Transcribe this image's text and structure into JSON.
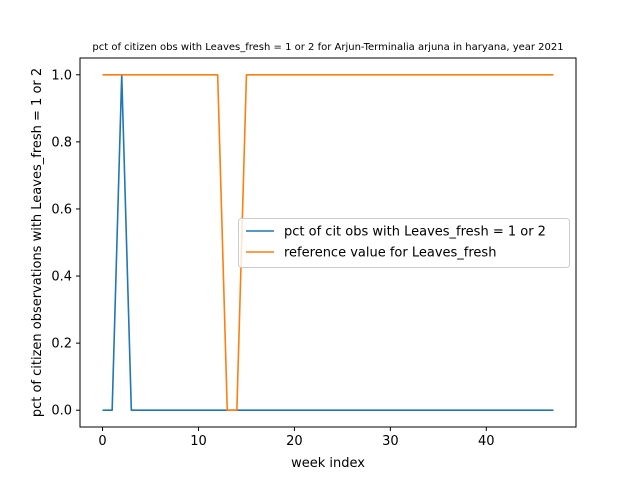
{
  "chart_data": {
    "type": "line",
    "title": "pct of citizen obs with Leaves_fresh = 1 or 2 for Arjun-Terminalia arjuna in haryana, year 2021",
    "xlabel": "week index",
    "ylabel": "pct of citizen observations with Leaves_fresh = 1 or 2",
    "xlim": [
      -2.35,
      49.35
    ],
    "ylim": [
      -0.05,
      1.05
    ],
    "xticks": [
      0,
      10,
      20,
      30,
      40
    ],
    "yticks": [
      0.0,
      0.2,
      0.4,
      0.6,
      0.8,
      1.0
    ],
    "xtick_labels": [
      "0",
      "10",
      "20",
      "30",
      "40"
    ],
    "ytick_labels": [
      "0.0",
      "0.2",
      "0.4",
      "0.6",
      "0.8",
      "1.0"
    ],
    "grid": false,
    "legend_position": "center-right",
    "series": [
      {
        "name": "pct of cit obs with Leaves_fresh = 1 or 2",
        "color": "#1f77b4",
        "x": [
          0,
          1,
          2,
          3,
          4,
          5,
          6,
          7,
          8,
          9,
          10,
          11,
          12,
          13,
          14,
          15,
          16,
          17,
          18,
          19,
          20,
          21,
          22,
          23,
          24,
          25,
          26,
          27,
          28,
          29,
          30,
          31,
          32,
          33,
          34,
          35,
          36,
          37,
          38,
          39,
          40,
          41,
          42,
          43,
          44,
          45,
          46,
          47
        ],
        "y": [
          0,
          0,
          1,
          0,
          0,
          0,
          0,
          0,
          0,
          0,
          0,
          0,
          0,
          0,
          0,
          0,
          0,
          0,
          0,
          0,
          0,
          0,
          0,
          0,
          0,
          0,
          0,
          0,
          0,
          0,
          0,
          0,
          0,
          0,
          0,
          0,
          0,
          0,
          0,
          0,
          0,
          0,
          0,
          0,
          0,
          0,
          0,
          0
        ]
      },
      {
        "name": "reference value for Leaves_fresh",
        "color": "#ff7f0e",
        "x": [
          0,
          1,
          2,
          3,
          4,
          5,
          6,
          7,
          8,
          9,
          10,
          11,
          12,
          13,
          14,
          15,
          16,
          17,
          18,
          19,
          20,
          21,
          22,
          23,
          24,
          25,
          26,
          27,
          28,
          29,
          30,
          31,
          32,
          33,
          34,
          35,
          36,
          37,
          38,
          39,
          40,
          41,
          42,
          43,
          44,
          45,
          46,
          47
        ],
        "y": [
          1,
          1,
          1,
          1,
          1,
          1,
          1,
          1,
          1,
          1,
          1,
          1,
          1,
          0,
          0,
          1,
          1,
          1,
          1,
          1,
          1,
          1,
          1,
          1,
          1,
          1,
          1,
          1,
          1,
          1,
          1,
          1,
          1,
          1,
          1,
          1,
          1,
          1,
          1,
          1,
          1,
          1,
          1,
          1,
          1,
          1,
          1,
          1
        ]
      }
    ]
  }
}
